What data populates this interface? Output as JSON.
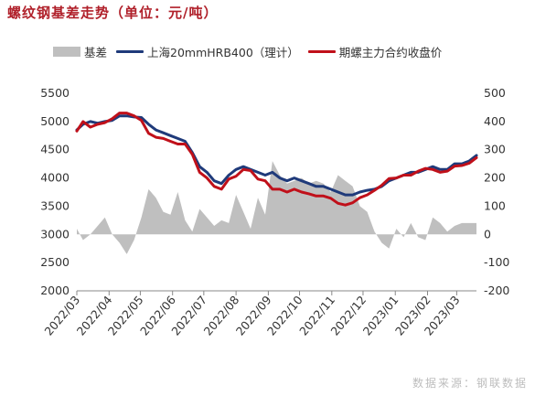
{
  "title": "螺纹钢基差走势（单位：元/吨）",
  "source": "数据来源：钢联数据",
  "chart_data": {
    "type": "line",
    "title": "螺纹钢基差走势（单位：元/吨）",
    "legend_position": "top",
    "grid": false,
    "x_range": [
      "2022-03-01",
      "2023-03-20"
    ],
    "x_ticks": [
      "2022/03",
      "2022/04",
      "2022/05",
      "2022/06",
      "2022/07",
      "2022/08",
      "2022/09",
      "2022/10",
      "2022/11",
      "2022/12",
      "2023/01",
      "2023/02",
      "2023/03"
    ],
    "y_left": {
      "range": [
        2000,
        5500
      ],
      "ticks": [
        2000,
        2500,
        3000,
        3500,
        4000,
        4500,
        5000,
        5500
      ]
    },
    "y_right": {
      "range": [
        -200,
        500
      ],
      "ticks": [
        -200,
        -100,
        0,
        100,
        200,
        300,
        400,
        500
      ]
    },
    "colors": {
      "basis": "#bfbfbf",
      "spot": "#1f3a7a",
      "futures": "#c0101a"
    },
    "series": [
      {
        "name": "基差",
        "type": "area",
        "axis": "right",
        "x": [
          "2022-03-01",
          "2022-03-07",
          "2022-03-14",
          "2022-03-21",
          "2022-03-28",
          "2022-04-04",
          "2022-04-11",
          "2022-04-18",
          "2022-04-25",
          "2022-05-02",
          "2022-05-09",
          "2022-05-16",
          "2022-05-23",
          "2022-05-30",
          "2022-06-06",
          "2022-06-13",
          "2022-06-20",
          "2022-06-27",
          "2022-07-04",
          "2022-07-11",
          "2022-07-18",
          "2022-07-25",
          "2022-08-01",
          "2022-08-08",
          "2022-08-15",
          "2022-08-22",
          "2022-08-29",
          "2022-09-05",
          "2022-09-12",
          "2022-09-19",
          "2022-09-26",
          "2022-10-03",
          "2022-10-10",
          "2022-10-17",
          "2022-10-24",
          "2022-10-31",
          "2022-11-07",
          "2022-11-14",
          "2022-11-21",
          "2022-11-28",
          "2022-12-05",
          "2022-12-12",
          "2022-12-19",
          "2022-12-26",
          "2023-01-02",
          "2023-01-09",
          "2023-01-16",
          "2023-01-23",
          "2023-01-30",
          "2023-02-06",
          "2023-02-13",
          "2023-02-20",
          "2023-02-27",
          "2023-03-06",
          "2023-03-13",
          "2023-03-20"
        ],
        "values": [
          20,
          -20,
          0,
          30,
          60,
          0,
          -30,
          -70,
          -20,
          60,
          160,
          130,
          80,
          70,
          150,
          50,
          10,
          90,
          60,
          30,
          50,
          40,
          140,
          80,
          20,
          130,
          70,
          260,
          210,
          180,
          190,
          200,
          180,
          190,
          180,
          150,
          210,
          190,
          170,
          100,
          80,
          10,
          -30,
          -50,
          20,
          -10,
          40,
          -10,
          -20,
          60,
          40,
          10,
          30,
          40,
          40,
          40
        ]
      },
      {
        "name": "上海20mmHRB400（理计）",
        "type": "line",
        "axis": "left",
        "x": [
          "2022-03-01",
          "2022-03-07",
          "2022-03-14",
          "2022-03-21",
          "2022-03-28",
          "2022-04-04",
          "2022-04-11",
          "2022-04-18",
          "2022-04-25",
          "2022-05-02",
          "2022-05-09",
          "2022-05-16",
          "2022-05-23",
          "2022-05-30",
          "2022-06-06",
          "2022-06-13",
          "2022-06-20",
          "2022-06-27",
          "2022-07-04",
          "2022-07-11",
          "2022-07-18",
          "2022-07-25",
          "2022-08-01",
          "2022-08-08",
          "2022-08-15",
          "2022-08-22",
          "2022-08-29",
          "2022-09-05",
          "2022-09-12",
          "2022-09-19",
          "2022-09-26",
          "2022-10-03",
          "2022-10-10",
          "2022-10-17",
          "2022-10-24",
          "2022-10-31",
          "2022-11-07",
          "2022-11-14",
          "2022-11-21",
          "2022-11-28",
          "2022-12-05",
          "2022-12-12",
          "2022-12-19",
          "2022-12-26",
          "2023-01-02",
          "2023-01-09",
          "2023-01-16",
          "2023-01-23",
          "2023-01-30",
          "2023-02-06",
          "2023-02-13",
          "2023-02-20",
          "2023-02-27",
          "2023-03-06",
          "2023-03-13",
          "2023-03-20"
        ],
        "values": [
          4850,
          4950,
          5000,
          4970,
          5000,
          5020,
          5100,
          5100,
          5080,
          5070,
          4950,
          4850,
          4800,
          4750,
          4700,
          4650,
          4450,
          4200,
          4100,
          3950,
          3900,
          4050,
          4150,
          4200,
          4150,
          4100,
          4050,
          4100,
          4000,
          3950,
          4000,
          3950,
          3900,
          3850,
          3850,
          3800,
          3750,
          3700,
          3700,
          3750,
          3780,
          3800,
          3850,
          3950,
          4000,
          4050,
          4100,
          4100,
          4150,
          4200,
          4150,
          4150,
          4250,
          4250,
          4300,
          4400
        ]
      },
      {
        "name": "期螺主力合约收盘价",
        "type": "line",
        "axis": "left",
        "x": [
          "2022-03-01",
          "2022-03-07",
          "2022-03-14",
          "2022-03-21",
          "2022-03-28",
          "2022-04-04",
          "2022-04-11",
          "2022-04-18",
          "2022-04-25",
          "2022-05-02",
          "2022-05-09",
          "2022-05-16",
          "2022-05-23",
          "2022-05-30",
          "2022-06-06",
          "2022-06-13",
          "2022-06-20",
          "2022-06-27",
          "2022-07-04",
          "2022-07-11",
          "2022-07-18",
          "2022-07-25",
          "2022-08-01",
          "2022-08-08",
          "2022-08-15",
          "2022-08-22",
          "2022-08-29",
          "2022-09-05",
          "2022-09-12",
          "2022-09-19",
          "2022-09-26",
          "2022-10-03",
          "2022-10-10",
          "2022-10-17",
          "2022-10-24",
          "2022-10-31",
          "2022-11-07",
          "2022-11-14",
          "2022-11-21",
          "2022-11-28",
          "2022-12-05",
          "2022-12-12",
          "2022-12-19",
          "2022-12-26",
          "2023-01-02",
          "2023-01-09",
          "2023-01-16",
          "2023-01-23",
          "2023-01-30",
          "2023-02-06",
          "2023-02-13",
          "2023-02-20",
          "2023-02-27",
          "2023-03-06",
          "2023-03-13",
          "2023-03-20"
        ],
        "values": [
          4830,
          5000,
          4900,
          4950,
          4980,
          5050,
          5150,
          5150,
          5100,
          5020,
          4790,
          4720,
          4700,
          4650,
          4600,
          4600,
          4420,
          4100,
          4000,
          3850,
          3800,
          3980,
          4030,
          4150,
          4130,
          3980,
          3950,
          3800,
          3800,
          3750,
          3800,
          3750,
          3720,
          3680,
          3680,
          3640,
          3550,
          3520,
          3560,
          3650,
          3700,
          3780,
          3870,
          3990,
          4000,
          4050,
          4050,
          4120,
          4170,
          4150,
          4100,
          4120,
          4210,
          4220,
          4260,
          4360
        ]
      }
    ]
  }
}
